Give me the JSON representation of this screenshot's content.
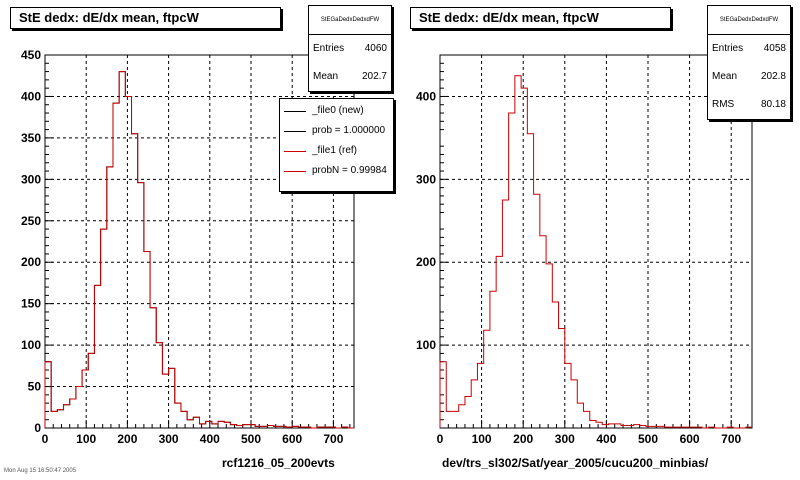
{
  "chart_data": [
    {
      "type": "line",
      "title": "StE dedx: dE/dx mean, ftpcW",
      "xlim": [
        0,
        750
      ],
      "ylim": [
        0,
        450
      ],
      "x_ticks": [
        "0",
        "100",
        "200",
        "300",
        "400",
        "500",
        "600",
        "700"
      ],
      "y_ticks": [
        "0",
        "50",
        "100",
        "150",
        "200",
        "250",
        "300",
        "350",
        "400",
        "450"
      ],
      "grid": true,
      "bin_width": 15,
      "stats": {
        "header": "StEGaDedxDedxdFW",
        "rows": [
          {
            "label": "Entries",
            "value": "4060"
          },
          {
            "label": "Mean",
            "value": "202.7"
          }
        ]
      },
      "legend": [
        {
          "label": "_file0 (new)",
          "color": "#000000"
        },
        {
          "label": "prob = 1.000000",
          "color": "#000000"
        },
        {
          "label": "_file1 (ref)",
          "color": "#cc0000"
        },
        {
          "label": "probN = 0.99984",
          "color": "#cc0000"
        }
      ],
      "footer": "rcf1216_05_200evts",
      "series": [
        {
          "color": "#000000",
          "values": [
            80,
            20,
            22,
            28,
            35,
            50,
            70,
            90,
            172,
            240,
            315,
            392,
            430,
            400,
            355,
            296,
            213,
            145,
            103,
            65,
            72,
            30,
            20,
            10,
            13,
            5,
            8,
            5,
            8,
            7,
            4,
            3,
            4,
            4,
            2,
            2,
            3,
            2,
            2,
            1,
            2,
            1,
            1,
            0,
            1,
            1,
            1,
            0,
            1,
            0
          ]
        },
        {
          "color": "#cc0000",
          "values": [
            80,
            20,
            22,
            28,
            35,
            50,
            70,
            90,
            172,
            240,
            315,
            392,
            430,
            400,
            355,
            296,
            213,
            145,
            103,
            65,
            72,
            30,
            20,
            10,
            13,
            5,
            8,
            5,
            8,
            7,
            4,
            3,
            4,
            4,
            2,
            2,
            3,
            2,
            2,
            1,
            2,
            1,
            1,
            0,
            1,
            1,
            1,
            0,
            1,
            0
          ]
        }
      ]
    },
    {
      "type": "line",
      "title": "StE dedx: dE/dx mean, ftpcW",
      "xlim": [
        0,
        750
      ],
      "ylim": [
        0,
        450
      ],
      "x_ticks": [
        "0",
        "100",
        "200",
        "300",
        "400",
        "500",
        "600",
        "700"
      ],
      "y_ticks": [
        "100",
        "200",
        "300",
        "400"
      ],
      "grid": true,
      "bin_width": 15,
      "stats": {
        "header": "StEGaDedxDedxdFW",
        "rows": [
          {
            "label": "Entries",
            "value": "4058"
          },
          {
            "label": "Mean",
            "value": "202.8"
          },
          {
            "label": "RMS",
            "value": "80.18"
          }
        ]
      },
      "footer": "dev/trs_sl302/Sat/year_2005/cucu200_minbias/",
      "series": [
        {
          "color": "#cc0000",
          "values": [
            80,
            20,
            20,
            28,
            38,
            58,
            78,
            118,
            165,
            207,
            275,
            380,
            425,
            410,
            355,
            282,
            232,
            198,
            152,
            120,
            78,
            58,
            30,
            20,
            9,
            7,
            4,
            5,
            5,
            3,
            3,
            4,
            3,
            2,
            2,
            2,
            1,
            1,
            1,
            1,
            1,
            1,
            0,
            1,
            0,
            0,
            1,
            0,
            0,
            1
          ]
        }
      ]
    }
  ],
  "stamp": "Mon Aug 15 16:50:47 2005"
}
